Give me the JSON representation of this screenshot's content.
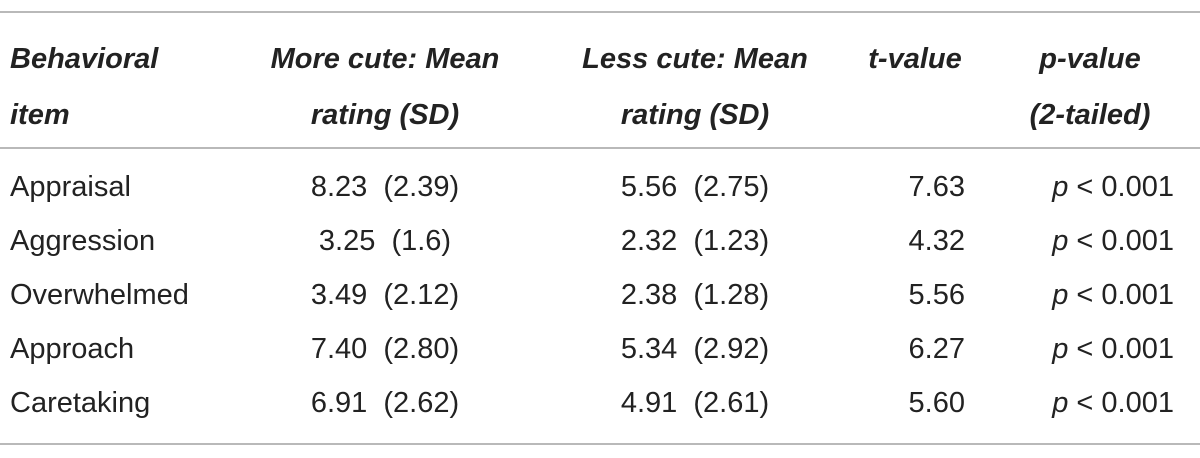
{
  "table": {
    "headers": {
      "item": [
        "Behavioral",
        "item"
      ],
      "more": [
        "More cute: Mean",
        "rating (SD)"
      ],
      "less": [
        "Less cute: Mean",
        "rating (SD)"
      ],
      "t": [
        "t-value"
      ],
      "p": [
        "p-value",
        "(2-tailed)"
      ]
    },
    "rows": [
      {
        "item": "Appraisal",
        "more": "8.23  (2.39)",
        "less": "5.56  (2.75)",
        "t": "7.63",
        "p_var": "p",
        "p_rest": " < 0.001"
      },
      {
        "item": "Aggression",
        "more": "3.25  (1.6)",
        "less": "2.32  (1.23)",
        "t": "4.32",
        "p_var": "p",
        "p_rest": " < 0.001"
      },
      {
        "item": "Overwhelmed",
        "more": "3.49  (2.12)",
        "less": "2.38  (1.28)",
        "t": "5.56",
        "p_var": "p",
        "p_rest": " < 0.001"
      },
      {
        "item": "Approach",
        "more": "7.40  (2.80)",
        "less": "5.34  (2.92)",
        "t": "6.27",
        "p_var": "p",
        "p_rest": " < 0.001"
      },
      {
        "item": "Caretaking",
        "more": "6.91  (2.62)",
        "less": "4.91  (2.61)",
        "t": "5.60",
        "p_var": "p",
        "p_rest": " < 0.001"
      }
    ]
  }
}
